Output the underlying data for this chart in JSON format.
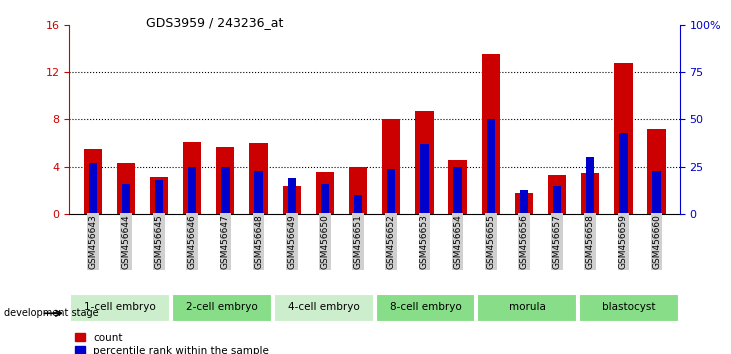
{
  "title": "GDS3959 / 243236_at",
  "samples": [
    "GSM456643",
    "GSM456644",
    "GSM456645",
    "GSM456646",
    "GSM456647",
    "GSM456648",
    "GSM456649",
    "GSM456650",
    "GSM456651",
    "GSM456652",
    "GSM456653",
    "GSM456654",
    "GSM456655",
    "GSM456656",
    "GSM456657",
    "GSM456658",
    "GSM456659",
    "GSM456660"
  ],
  "count_values": [
    5.5,
    4.3,
    3.1,
    6.1,
    5.7,
    6.0,
    2.4,
    3.6,
    4.0,
    8.0,
    8.7,
    4.6,
    13.5,
    1.8,
    3.3,
    3.5,
    12.8,
    7.2
  ],
  "percentile_values": [
    0.27,
    0.16,
    0.18,
    0.25,
    0.25,
    0.23,
    0.19,
    0.16,
    0.1,
    0.24,
    0.37,
    0.25,
    0.5,
    0.13,
    0.15,
    0.3,
    0.43,
    0.23
  ],
  "bar_color": "#cc0000",
  "percentile_color": "#0000cc",
  "ylim_left": [
    0,
    16
  ],
  "ylim_right": [
    0,
    100
  ],
  "yticks_left": [
    0,
    4,
    8,
    12,
    16
  ],
  "yticks_right": [
    0,
    25,
    50,
    75,
    100
  ],
  "ytick_right_labels": [
    "0",
    "25",
    "50",
    "75",
    "100%"
  ],
  "grid_values": [
    4,
    8,
    12
  ],
  "stages": [
    {
      "label": "1-cell embryo",
      "start": 0,
      "end": 3,
      "color": "#cceecc"
    },
    {
      "label": "2-cell embryo",
      "start": 3,
      "end": 6,
      "color": "#88dd88"
    },
    {
      "label": "4-cell embryo",
      "start": 6,
      "end": 9,
      "color": "#cceecc"
    },
    {
      "label": "8-cell embryo",
      "start": 9,
      "end": 12,
      "color": "#88dd88"
    },
    {
      "label": "morula",
      "start": 12,
      "end": 15,
      "color": "#88dd88"
    },
    {
      "label": "blastocyst",
      "start": 15,
      "end": 18,
      "color": "#88dd88"
    }
  ],
  "development_stage_label": "development stage",
  "legend_count_label": "count",
  "legend_percentile_label": "percentile rank within the sample",
  "bar_width": 0.55,
  "percentile_bar_width": 0.25,
  "left_ylabel_color": "#cc0000",
  "right_ylabel_color": "#0000cc",
  "tick_label_bg": "#d0d0d0"
}
